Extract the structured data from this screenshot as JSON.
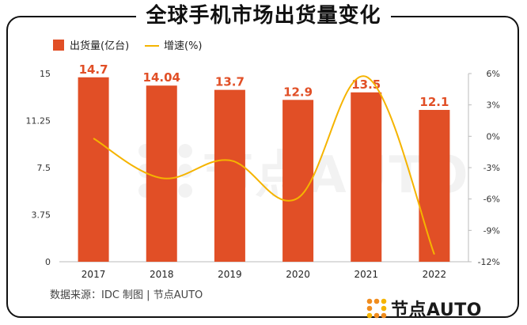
{
  "title": "全球手机市场出货量变化",
  "source": "数据来源：IDC  制图 | 节点AUTO",
  "logo_text": "节点AUTO",
  "watermark_text": "节点AUTO",
  "colors": {
    "bar": "#E14F26",
    "line": "#F5B400",
    "label": "#E14F26",
    "axis": "#999999",
    "logo_orange": "#F08C1E"
  },
  "chart_data": {
    "type": "bar",
    "categories": [
      "2017",
      "2018",
      "2019",
      "2020",
      "2021",
      "2022"
    ],
    "series": [
      {
        "name": "出货量(亿台)",
        "type": "bar",
        "axis": "left",
        "values": [
          14.7,
          14.04,
          13.7,
          12.9,
          13.5,
          12.1
        ],
        "labels": [
          "14.7",
          "14.04",
          "13.7",
          "12.9",
          "13.5",
          "12.1"
        ]
      },
      {
        "name": "增速(%)",
        "type": "line",
        "axis": "right",
        "values": [
          -0.2,
          -4.0,
          -2.3,
          -5.9,
          5.7,
          -11.3
        ]
      }
    ],
    "y_left": {
      "ylim": [
        0,
        15
      ],
      "ticks": [
        "0",
        "3.75",
        "7.5",
        "11.25",
        "15"
      ]
    },
    "y_right": {
      "ylim": [
        -12,
        6
      ],
      "ticks": [
        "-12%",
        "-9%",
        "-6%",
        "-3%",
        "0%",
        "3%",
        "6%"
      ]
    },
    "legend": {
      "placement": "top-left"
    }
  }
}
